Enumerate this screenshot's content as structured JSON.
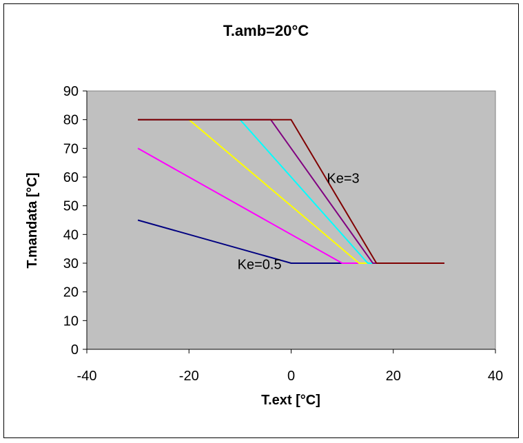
{
  "chart_data": {
    "type": "line",
    "title": "T.amb=20°C",
    "xlabel": "T.ext [°C]",
    "ylabel": "T.mandata [°C]",
    "xlim": [
      -40,
      40
    ],
    "ylim": [
      0,
      90
    ],
    "xticks": [
      -40,
      -20,
      0,
      20,
      40
    ],
    "yticks": [
      0,
      10,
      20,
      30,
      40,
      50,
      60,
      70,
      80,
      90
    ],
    "grid": false,
    "legend": "none",
    "plot_background": "#c0c0c0",
    "annotations": [
      {
        "text": "Ke=3",
        "x": 7,
        "y": 58
      },
      {
        "text": "Ke=0.5",
        "x": -10.5,
        "y": 28
      }
    ],
    "series": [
      {
        "color": "#000080",
        "x": [
          -30,
          0,
          30
        ],
        "y": [
          45,
          30,
          30
        ]
      },
      {
        "color": "#ff00ff",
        "x": [
          -30,
          10,
          30
        ],
        "y": [
          70,
          30,
          30
        ]
      },
      {
        "color": "#ffff00",
        "x": [
          -30,
          -20,
          13.3,
          30
        ],
        "y": [
          80,
          80,
          30,
          30
        ]
      },
      {
        "color": "#00ffff",
        "x": [
          -30,
          -10,
          15,
          30
        ],
        "y": [
          80,
          80,
          30,
          30
        ]
      },
      {
        "color": "#800080",
        "x": [
          -30,
          -4,
          16,
          30
        ],
        "y": [
          80,
          80,
          30,
          30
        ]
      },
      {
        "color": "#800000",
        "x": [
          -30,
          0,
          16.7,
          30
        ],
        "y": [
          80,
          80,
          30,
          30
        ]
      }
    ]
  }
}
